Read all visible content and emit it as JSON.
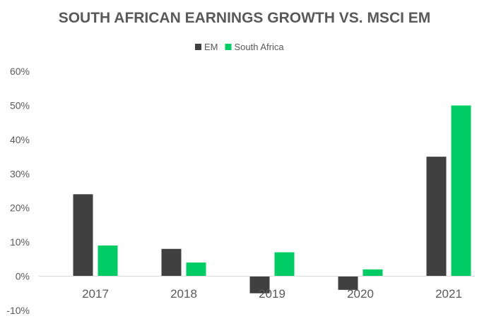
{
  "chart_data": {
    "type": "bar",
    "title": "SOUTH AFRICAN EARNINGS GROWTH VS. MSCI EM",
    "categories": [
      "2017",
      "2018",
      "2019",
      "2020",
      "2021"
    ],
    "series": [
      {
        "name": "EM",
        "color": "#404040",
        "values": [
          24,
          8,
          -5,
          -4,
          35
        ]
      },
      {
        "name": "South Africa",
        "color": "#00CC66",
        "values": [
          9,
          4,
          7,
          2,
          50
        ]
      }
    ],
    "ylim": [
      -10,
      60
    ],
    "yticks": [
      "-10%",
      "0%",
      "10%",
      "20%",
      "30%",
      "40%",
      "50%",
      "60%"
    ],
    "ytick_values": [
      -10,
      0,
      10,
      20,
      30,
      40,
      50,
      60
    ],
    "legend_position": "top",
    "grid": false,
    "xlabel": "",
    "ylabel": ""
  }
}
